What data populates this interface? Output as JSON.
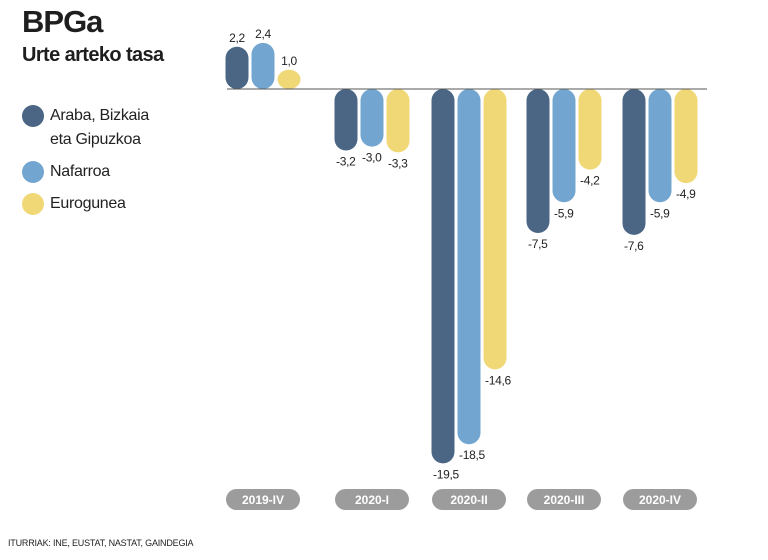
{
  "title": "BPGa",
  "subtitle": "Urte arteko tasa",
  "source": "ITURRIAK: INE, EUSTAT, NASTAT, GAINDEGIA",
  "chart_data": {
    "type": "bar",
    "categories": [
      "2019-IV",
      "2020-I",
      "2020-II",
      "2020-III",
      "2020-IV"
    ],
    "series": [
      {
        "name": "Araba, Bizkaia\neta Gipuzkoa",
        "color": "#4a6684",
        "values": [
          2.2,
          -3.2,
          -19.5,
          -7.5,
          -7.6
        ],
        "labels": [
          "2,2",
          "-3,2",
          "-19,5",
          "-7,5",
          "-7,6"
        ]
      },
      {
        "name": "Nafarroa",
        "color": "#72a6d1",
        "values": [
          2.4,
          -3.0,
          -18.5,
          -5.9,
          -5.9
        ],
        "labels": [
          "2,4",
          "-3,0",
          "-18,5",
          "-5,9",
          "-5,9"
        ]
      },
      {
        "name": "Eurogunea",
        "color": "#f0d877",
        "values": [
          1.0,
          -3.3,
          -14.6,
          -4.2,
          -4.9
        ],
        "labels": [
          "1,0",
          "-3,3",
          "-14,6",
          "-4,2",
          "-4,9"
        ]
      }
    ],
    "ylim": [
      -20,
      3
    ],
    "grid": false,
    "legend_position": "left"
  }
}
